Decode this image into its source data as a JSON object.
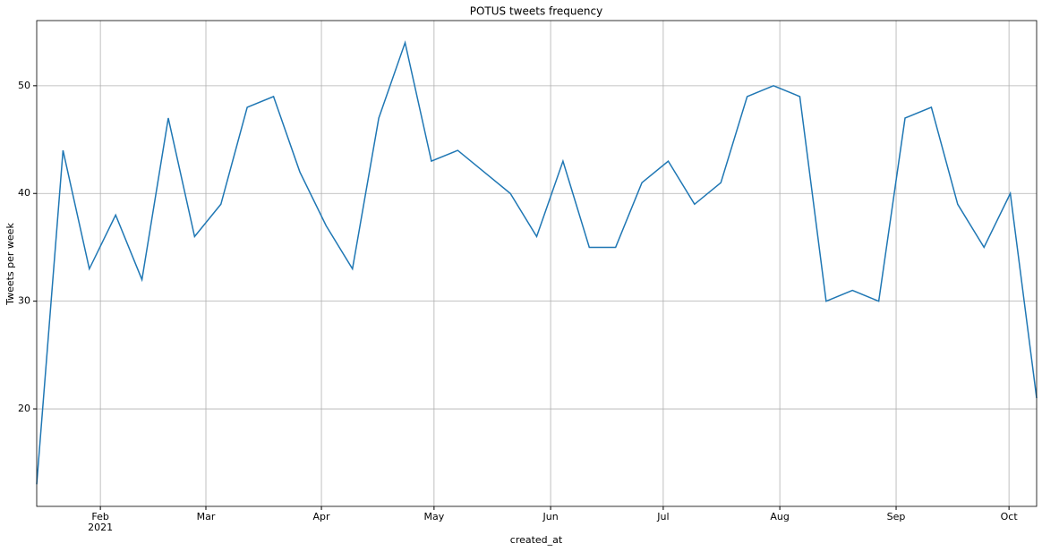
{
  "chart_data": {
    "type": "line",
    "title": "POTUS tweets frequency",
    "xlabel": "created_at",
    "ylabel": "Tweets per week",
    "categories": [
      null,
      null,
      null,
      null,
      null,
      null,
      null,
      null,
      null,
      null,
      null,
      null,
      null,
      null,
      null,
      null,
      null,
      null,
      null,
      null,
      null,
      null,
      null,
      null,
      null,
      null,
      null,
      null,
      null,
      null,
      null,
      null,
      null,
      null,
      null,
      null,
      null,
      null,
      null
    ],
    "series": [
      {
        "name": "tweets",
        "color": "#1f77b4",
        "values": [
          13,
          44,
          33,
          38,
          32,
          47,
          36,
          39,
          48,
          49,
          42,
          37,
          33,
          47,
          54,
          43,
          44,
          42,
          40,
          36,
          43,
          35,
          35,
          41,
          43,
          39,
          41,
          49,
          50,
          49,
          30,
          31,
          30,
          47,
          48,
          39,
          35,
          40,
          21
        ]
      }
    ],
    "xlim": [
      0,
      38
    ],
    "xticks": [
      {
        "value": 2.42,
        "label": "Feb"
      },
      {
        "value": 6.43,
        "label": "Mar"
      },
      {
        "value": 10.82,
        "label": "Apr"
      },
      {
        "value": 15.1,
        "label": "May"
      },
      {
        "value": 19.53,
        "label": "Jun"
      },
      {
        "value": 23.81,
        "label": "Jul"
      },
      {
        "value": 28.24,
        "label": "Aug"
      },
      {
        "value": 32.66,
        "label": "Sep"
      },
      {
        "value": 36.95,
        "label": "Oct"
      }
    ],
    "x_year_label": "2021",
    "ylim": [
      10.95,
      56.05
    ],
    "yticks": [
      20,
      30,
      40,
      50
    ],
    "grid": true
  }
}
